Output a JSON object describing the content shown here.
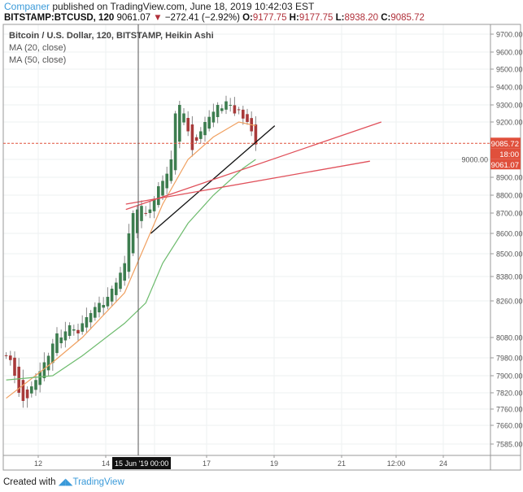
{
  "header": {
    "author": "Companer",
    "published_text": "published on TradingView.com, June 18, 2019 10:42:03 EST",
    "symbol": "BITSTAMP:BTCUSD, 120",
    "last": "9061.07",
    "change": "−272.41 (−2.92%)",
    "o_label": "O:",
    "o": "9177.75",
    "h_label": "H:",
    "h": "9177.75",
    "l_label": "L:",
    "l": "8938.20",
    "c_label": "C:",
    "c": "9085.72"
  },
  "legend": {
    "title": "Bitcoin / U.S. Dollar, 120, BITSTAMP, Heikin Ashi",
    "ma20": "MA (20, close)",
    "ma50": "MA (50, close)"
  },
  "footer": {
    "created": "Created with",
    "brand": "TradingView"
  },
  "colors": {
    "up": "#3d7d4f",
    "down": "#a83a3a",
    "ma20": "#f0a060",
    "ma50": "#6dbb6d",
    "trend_black": "#111111",
    "trend_red": "#e0505a",
    "price_label": "#e0503c"
  },
  "chart_data": {
    "type": "candlestick",
    "style": "Heikin Ashi",
    "price_ticks": [
      "9700.00",
      "9600.00",
      "9500.00",
      "9400.00",
      "9300.00",
      "9200.00",
      "9000.00",
      "8900.00",
      "8800.00",
      "8700.00",
      "8600.00",
      "8500.00",
      "8380.00",
      "8260.00",
      "8080.00",
      "7980.00",
      "7900.00",
      "7820.00",
      "7760.00",
      "7660.00",
      "7585.00"
    ],
    "time_ticks": [
      "12",
      "14",
      "17",
      "19",
      "21",
      "12:00",
      "24"
    ],
    "crosshair_time": "15 Jun '19   00:00",
    "last_price_label": "9085.72",
    "countdown_label": "18:00",
    "close_label": "9061.07",
    "closes": [
      7990,
      7970,
      7900,
      7820,
      7790,
      7800,
      7850,
      7880,
      7920,
      7960,
      7990,
      8050,
      8100,
      8080,
      8110,
      8140,
      8120,
      8100,
      8150,
      8180,
      8200,
      8230,
      8250,
      8240,
      8280,
      8320,
      8350,
      8400,
      8450,
      8600,
      8700,
      8720,
      8740,
      8700,
      8720,
      8780,
      8850,
      8880,
      8920,
      9000,
      9250,
      9300,
      9250,
      9150,
      9050,
      9100,
      9150,
      9200,
      9230,
      9260,
      9300,
      9280,
      9320,
      9300,
      9250,
      9270,
      9220,
      9200,
      9150,
      9080
    ],
    "ma20": [
      [
        0,
        7800
      ],
      [
        11,
        7960
      ],
      [
        18,
        8080
      ],
      [
        28,
        8300
      ],
      [
        33,
        8550
      ],
      [
        37,
        8750
      ],
      [
        43,
        9000
      ],
      [
        49,
        9120
      ],
      [
        55,
        9200
      ],
      [
        59,
        9180
      ]
    ],
    "ma50": [
      [
        0,
        7880
      ],
      [
        11,
        7900
      ],
      [
        18,
        7990
      ],
      [
        28,
        8150
      ],
      [
        33,
        8250
      ],
      [
        37,
        8450
      ],
      [
        43,
        8650
      ],
      [
        49,
        8800
      ],
      [
        56,
        8950
      ],
      [
        59,
        9000
      ]
    ],
    "trendlines": [
      {
        "color": "black",
        "from": [
          34.2,
          8600
        ],
        "to": [
          63.5,
          9180
        ]
      },
      {
        "color": "red",
        "from": [
          28.3,
          8720
        ],
        "to": [
          88.7,
          9200
        ]
      },
      {
        "color": "red",
        "from": [
          28.3,
          8750
        ],
        "to": [
          86,
          8990
        ]
      }
    ]
  }
}
